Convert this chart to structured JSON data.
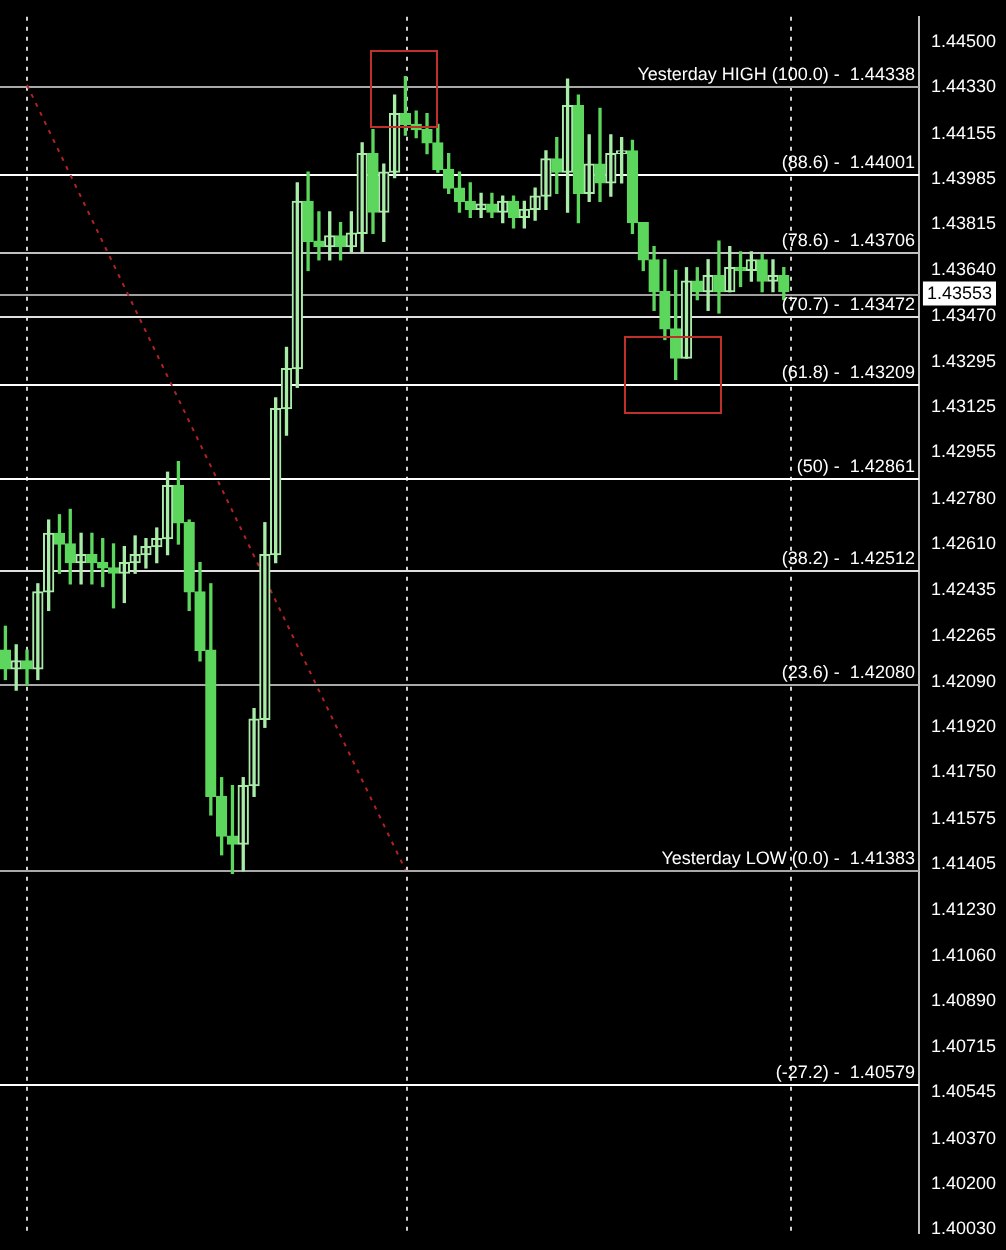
{
  "chart_data": {
    "type": "candlestick",
    "colors": [
      "#5cd65c",
      "#a8eca8",
      "#5cd65c",
      "#a8eca8",
      "#a8eca8",
      "#5cd65c",
      "#5cd65c",
      "#a8eca8",
      "#5cd65c",
      "#5cd65c",
      "#5cd65c",
      "#a8eca8",
      "#a8eca8",
      "#a8eca8",
      "#a8eca8",
      "#a8eca8",
      "#5cd65c",
      "#5cd65c",
      "#5cd65c",
      "#5cd65c",
      "#5cd65c",
      "#5cd65c",
      "#a8eca8",
      "#a8eca8",
      "#a8eca8",
      "#a8eca8",
      "#a8eca8",
      "#a8eca8",
      "#5cd65c",
      "#5cd65c",
      "#a8eca8",
      "#5cd65c",
      "#a8eca8",
      "#a8eca8",
      "#5cd65c",
      "#a8eca8",
      "#a8eca8",
      "#5cd65c",
      "#5cd65c",
      "#5cd65c",
      "#5cd65c",
      "#5cd65c",
      "#5cd65c",
      "#5cd65c",
      "#a8eca8",
      "#5cd65c",
      "#a8eca8",
      "#5cd65c",
      "#a8eca8",
      "#a8eca8",
      "#a8eca8",
      "#5cd65c",
      "#a8eca8",
      "#5cd65c",
      "#a8eca8",
      "#5cd65c",
      "#a8eca8",
      "#a8eca8",
      "#5cd65c",
      "#5cd65c",
      "#5cd65c",
      "#5cd65c",
      "#5cd65c",
      "#a8eca8",
      "#5cd65c",
      "#a8eca8",
      "#5cd65c",
      "#a8eca8",
      "#5cd65c",
      "#a8eca8",
      "#5cd65c",
      "#a8eca8",
      "#5cd65c",
      null,
      null,
      null,
      null,
      null,
      null,
      null,
      null,
      null,
      null,
      null,
      null
    ],
    "tick_labels": "y",
    "legend": false,
    "categories": [
      null,
      null,
      null,
      null,
      null,
      null,
      null,
      null,
      null,
      null,
      null,
      null,
      null,
      null,
      null,
      null,
      null,
      null,
      null,
      null,
      null,
      null,
      null,
      null,
      null,
      null,
      null,
      null,
      null,
      null,
      null,
      null,
      null,
      null,
      null,
      null,
      null,
      null,
      null,
      null,
      null,
      null,
      null,
      null,
      null,
      null,
      null,
      null,
      null,
      null,
      null,
      null,
      null,
      null,
      null,
      null,
      null,
      null,
      null,
      null,
      null,
      null,
      null,
      null,
      null,
      null,
      null,
      null,
      null,
      null,
      null,
      null,
      null,
      null,
      null,
      null,
      null,
      null,
      null,
      null,
      null,
      null,
      null,
      null,
      null
    ],
    "ohlc": [
      [
        1.4221,
        1.423,
        1.421,
        1.4214
      ],
      [
        1.4214,
        1.4223,
        1.4206,
        1.4217
      ],
      [
        1.4217,
        1.4221,
        1.4208,
        1.4214
      ],
      [
        1.4214,
        1.4246,
        1.421,
        1.4243
      ],
      [
        1.4243,
        1.427,
        1.4236,
        1.4265
      ],
      [
        1.4265,
        1.4272,
        1.425,
        1.4261
      ],
      [
        1.4261,
        1.4274,
        1.4246,
        1.4254
      ],
      [
        1.4254,
        1.4265,
        1.4246,
        1.4257
      ],
      [
        1.4257,
        1.4265,
        1.4246,
        1.4254
      ],
      [
        1.4254,
        1.4263,
        1.4245,
        1.4252
      ],
      [
        1.4252,
        1.4261,
        1.4237,
        1.425
      ],
      [
        1.425,
        1.426,
        1.4239,
        1.4254
      ],
      [
        1.4254,
        1.4264,
        1.425,
        1.4257
      ],
      [
        1.4257,
        1.4263,
        1.4252,
        1.426
      ],
      [
        1.426,
        1.4267,
        1.4254,
        1.4263
      ],
      [
        1.4263,
        1.4288,
        1.4257,
        1.4283
      ],
      [
        1.4283,
        1.4292,
        1.4261,
        1.4269
      ],
      [
        1.4269,
        1.427,
        1.4236,
        1.4243
      ],
      [
        1.4243,
        1.4254,
        1.4217,
        1.4221
      ],
      [
        1.4221,
        1.4246,
        1.4159,
        1.4166
      ],
      [
        1.4166,
        1.4173,
        1.4144,
        1.4151
      ],
      [
        1.4151,
        1.417,
        1.4137,
        1.4148
      ],
      [
        1.4148,
        1.4173,
        1.4138,
        1.417
      ],
      [
        1.417,
        1.4199,
        1.4166,
        1.4195
      ],
      [
        1.4195,
        1.4269,
        1.4192,
        1.4257
      ],
      [
        1.4257,
        1.4316,
        1.4254,
        1.4312
      ],
      [
        1.4312,
        1.4335,
        1.4302,
        1.4327
      ],
      [
        1.4327,
        1.4397,
        1.432,
        1.439
      ],
      [
        1.439,
        1.4401,
        1.4364,
        1.4375
      ],
      [
        1.4375,
        1.4386,
        1.4368,
        1.4373
      ],
      [
        1.4373,
        1.4386,
        1.4368,
        1.4377
      ],
      [
        1.4377,
        1.4382,
        1.4368,
        1.4373
      ],
      [
        1.4373,
        1.4386,
        1.4371,
        1.4378
      ],
      [
        1.4378,
        1.4412,
        1.4371,
        1.4408
      ],
      [
        1.4408,
        1.4417,
        1.4378,
        1.4386
      ],
      [
        1.4386,
        1.4404,
        1.4375,
        1.4401
      ],
      [
        1.4401,
        1.443,
        1.4399,
        1.4423
      ],
      [
        1.4423,
        1.4437,
        1.4415,
        1.4419
      ],
      [
        1.4419,
        1.4424,
        1.4414,
        1.4417
      ],
      [
        1.4417,
        1.4423,
        1.4408,
        1.4412
      ],
      [
        1.4412,
        1.4419,
        1.4401,
        1.4402
      ],
      [
        1.4402,
        1.4408,
        1.4393,
        1.4395
      ],
      [
        1.4395,
        1.4401,
        1.4386,
        1.439
      ],
      [
        1.439,
        1.4397,
        1.4384,
        1.4387
      ],
      [
        1.4387,
        1.4393,
        1.4384,
        1.4389
      ],
      [
        1.4389,
        1.4393,
        1.4384,
        1.4386
      ],
      [
        1.4386,
        1.4392,
        1.4382,
        1.439
      ],
      [
        1.439,
        1.4392,
        1.438,
        1.4384
      ],
      [
        1.4384,
        1.439,
        1.438,
        1.4387
      ],
      [
        1.4387,
        1.4395,
        1.4383,
        1.4392
      ],
      [
        1.4392,
        1.4409,
        1.4387,
        1.4406
      ],
      [
        1.4406,
        1.4414,
        1.4393,
        1.4401
      ],
      [
        1.4401,
        1.4436,
        1.4386,
        1.4426
      ],
      [
        1.4426,
        1.443,
        1.4382,
        1.4393
      ],
      [
        1.4393,
        1.4415,
        1.439,
        1.4404
      ],
      [
        1.4404,
        1.4425,
        1.439,
        1.4397
      ],
      [
        1.4397,
        1.4415,
        1.4392,
        1.4408
      ],
      [
        1.4408,
        1.4414,
        1.4397,
        1.4409
      ],
      [
        1.4409,
        1.4413,
        1.4378,
        1.4382
      ],
      [
        1.4382,
        1.4382,
        1.4364,
        1.4368
      ],
      [
        1.4368,
        1.4373,
        1.4349,
        1.4356
      ],
      [
        1.4356,
        1.4368,
        1.4338,
        1.4342
      ],
      [
        1.4342,
        1.4364,
        1.4323,
        1.4331
      ],
      [
        1.4331,
        1.4365,
        1.4331,
        1.436
      ],
      [
        1.436,
        1.4365,
        1.4353,
        1.4356
      ],
      [
        1.4356,
        1.4368,
        1.4349,
        1.4362
      ],
      [
        1.4362,
        1.4375,
        1.4348,
        1.4356
      ],
      [
        1.4356,
        1.4373,
        1.4356,
        1.4365
      ],
      [
        1.4365,
        1.4371,
        1.4358,
        1.4364
      ],
      [
        1.4364,
        1.4371,
        1.436,
        1.4368
      ],
      [
        1.4368,
        1.437,
        1.4356,
        1.436
      ],
      [
        1.436,
        1.4368,
        1.4356,
        1.4362
      ],
      [
        1.4362,
        1.4365,
        1.4353,
        1.4356
      ],
      null,
      null,
      null,
      null,
      null,
      null,
      null,
      null,
      null,
      null,
      null,
      null
    ],
    "series": [
      {
        "type": "line",
        "color": "#b22222",
        "line_style": "dotted",
        "marker": "none",
        "values": [
          null,
          null,
          1.44338,
          null,
          null,
          null,
          null,
          null,
          null,
          null,
          null,
          null,
          null,
          null,
          null,
          null,
          null,
          null,
          null,
          null,
          null,
          null,
          null,
          null,
          null,
          null,
          null,
          null,
          null,
          null,
          null,
          null,
          null,
          null,
          null,
          null,
          null,
          1.41383,
          null,
          null,
          null,
          null,
          null,
          null,
          null,
          null,
          null,
          null,
          null,
          null,
          null,
          null,
          null,
          null,
          null,
          null,
          null,
          null,
          null,
          null,
          null,
          null,
          null,
          null,
          null,
          null,
          null,
          null,
          null,
          null,
          null,
          null,
          null,
          null,
          null,
          null,
          null,
          null,
          null,
          null,
          null,
          null,
          null,
          null,
          null
        ]
      }
    ],
    "ylim": [
      1.40015,
      1.44595
    ],
    "yticks": [
      {
        "value": 1.445,
        "label": "1.44500"
      },
      {
        "value": 1.4433,
        "label": "1.44330"
      },
      {
        "value": 1.44155,
        "label": "1.44155"
      },
      {
        "value": 1.43985,
        "label": "1.43985"
      },
      {
        "value": 1.43815,
        "label": "1.43815"
      },
      {
        "value": 1.4364,
        "label": "1.43640"
      },
      {
        "value": 1.4347,
        "label": "1.43470"
      },
      {
        "value": 1.43295,
        "label": "1.43295"
      },
      {
        "value": 1.43125,
        "label": "1.43125"
      },
      {
        "value": 1.42955,
        "label": "1.42955"
      },
      {
        "value": 1.4278,
        "label": "1.42780"
      },
      {
        "value": 1.4261,
        "label": "1.42610"
      },
      {
        "value": 1.42435,
        "label": "1.42435"
      },
      {
        "value": 1.42265,
        "label": "1.42265"
      },
      {
        "value": 1.4209,
        "label": "1.42090"
      },
      {
        "value": 1.4192,
        "label": "1.41920"
      },
      {
        "value": 1.4175,
        "label": "1.41750"
      },
      {
        "value": 1.41575,
        "label": "1.41575"
      },
      {
        "value": 1.41405,
        "label": "1.41405"
      },
      {
        "value": 1.4123,
        "label": "1.41230"
      },
      {
        "value": 1.4106,
        "label": "1.41060"
      },
      {
        "value": 1.4089,
        "label": "1.40890"
      },
      {
        "value": 1.40715,
        "label": "1.40715"
      },
      {
        "value": 1.40545,
        "label": "1.40545"
      },
      {
        "value": 1.4037,
        "label": "1.40370"
      },
      {
        "value": 1.402,
        "label": "1.40200"
      },
      {
        "value": 1.4003,
        "label": "1.40030"
      }
    ],
    "ref_lines": [
      {
        "axis": "y",
        "value": 1.44338,
        "color": "#a9a9a9"
      },
      {
        "axis": "y",
        "value": 1.44001,
        "color": "#ffffff"
      },
      {
        "axis": "y",
        "value": 1.43706,
        "color": "#c0c0c0"
      },
      {
        "axis": "y",
        "value": 1.43553,
        "label": "1.43553",
        "color": "#a0a0a0"
      },
      {
        "axis": "y",
        "value": 1.43472,
        "color": "#e0e0e0"
      },
      {
        "axis": "y",
        "value": 1.43209,
        "color": "#ffffff"
      },
      {
        "axis": "y",
        "value": 1.42861,
        "color": "#ffffff"
      },
      {
        "axis": "y",
        "value": 1.42512,
        "color": "#e0e0e0"
      },
      {
        "axis": "y",
        "value": 1.4208,
        "color": "#a9a9a9"
      },
      {
        "axis": "y",
        "value": 1.41383,
        "color": "#a9a9a9"
      },
      {
        "axis": "y",
        "value": 1.40579,
        "color": "#ffffff"
      }
    ],
    "annotations": [
      {
        "text": "Yesterday HIGH (100.0) -  1.44338",
        "y": 1.44338
      },
      {
        "text": "(88.6) -  1.44001",
        "y": 1.44001
      },
      {
        "text": "(78.6) -  1.43706",
        "y": 1.43706
      },
      {
        "text": "(70.7) -  1.43472",
        "y": 1.43472
      },
      {
        "text": "(61.8) -  1.43209",
        "y": 1.43209
      },
      {
        "text": "(50) -  1.42861",
        "y": 1.42861
      },
      {
        "text": "(38.2) -  1.42512",
        "y": 1.42512
      },
      {
        "text": "(23.6) -  1.42080",
        "y": 1.4208
      },
      {
        "text": "Yesterday LOW (0.0) -  1.41383",
        "y": 1.41383
      },
      {
        "text": "(-27.2) -  1.40579",
        "y": 1.40579
      }
    ]
  }
}
